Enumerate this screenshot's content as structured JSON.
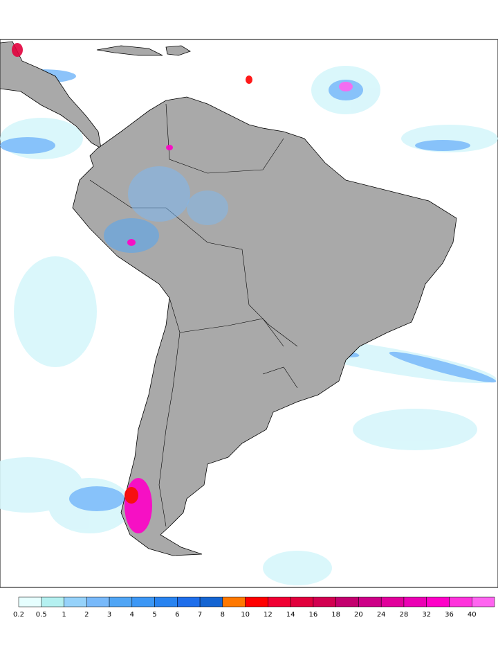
{
  "legend": {
    "ticks": [
      0.2,
      0.5,
      1,
      2,
      3,
      4,
      5,
      6,
      7,
      8,
      10,
      12,
      14,
      16,
      18,
      20,
      24,
      28,
      32,
      36,
      40
    ],
    "colors": [
      "#e6ffff",
      "#b4f0f0",
      "#96d2fa",
      "#78b9fa",
      "#50a5f5",
      "#3c97f5",
      "#2883f0",
      "#1e6eeb",
      "#1464d2",
      "#ff7800",
      "#ff0000",
      "#f00032",
      "#e1003c",
      "#d20050",
      "#c3006e",
      "#cd0087",
      "#e1009b",
      "#eb00b4",
      "#ff00c8",
      "#ff32dc",
      "#ff64f0"
    ]
  }
}
